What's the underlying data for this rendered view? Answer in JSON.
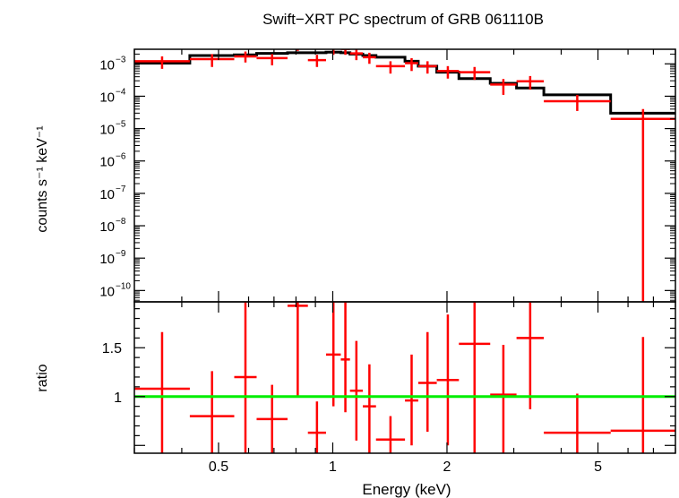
{
  "chart_data": {
    "type": "step+errorbar",
    "title": "Swift−XRT PC spectrum of GRB 061110B",
    "xlabel": "Energy (keV)",
    "x_scale": "log",
    "xlim": [
      0.3,
      8.0
    ],
    "x_ticks": [
      {
        "value": 0.5,
        "label": "0.5"
      },
      {
        "value": 1,
        "label": "1"
      },
      {
        "value": 2,
        "label": "2"
      },
      {
        "value": 5,
        "label": "5"
      }
    ],
    "panels": {
      "spectrum": {
        "ylabel": "counts s⁻¹ keV⁻¹",
        "y_scale": "log",
        "ylim_log10": [
          -10.35,
          -2.55
        ],
        "y_ticks": [
          {
            "exp": -3,
            "label_base": "10",
            "label_exp": "−3"
          },
          {
            "exp": -4,
            "label_base": "10",
            "label_exp": "−4"
          },
          {
            "exp": -5,
            "label_base": "10",
            "label_exp": "−5"
          },
          {
            "exp": -6,
            "label_base": "10",
            "label_exp": "−6"
          },
          {
            "exp": -7,
            "label_base": "10",
            "label_exp": "−7"
          },
          {
            "exp": -8,
            "label_base": "10",
            "label_exp": "−8"
          },
          {
            "exp": -9,
            "label_base": "10",
            "label_exp": "−9"
          },
          {
            "exp": -10,
            "label_base": "10",
            "label_exp": "−10"
          }
        ],
        "data_color": "#ff0000",
        "model_color": "#000000",
        "data": [
          {
            "xlo": 0.3,
            "xhi": 0.42,
            "y": 0.0012,
            "ylo": 0.0007,
            "yhi": 0.0017
          },
          {
            "xlo": 0.42,
            "xhi": 0.55,
            "y": 0.0014,
            "ylo": 0.0008,
            "yhi": 0.002
          },
          {
            "xlo": 0.55,
            "xhi": 0.63,
            "y": 0.0017,
            "ylo": 0.0011,
            "yhi": 0.0024
          },
          {
            "xlo": 0.63,
            "xhi": 0.76,
            "y": 0.0015,
            "ylo": 0.0009,
            "yhi": 0.002
          },
          {
            "xlo": 0.76,
            "xhi": 0.86,
            "y": 0.0035,
            "ylo": 0.0025,
            "yhi": 0.0045
          },
          {
            "xlo": 0.86,
            "xhi": 0.96,
            "y": 0.0013,
            "ylo": 0.0008,
            "yhi": 0.0019
          },
          {
            "xlo": 0.96,
            "xhi": 1.05,
            "y": 0.0031,
            "ylo": 0.0019,
            "yhi": 0.0043
          },
          {
            "xlo": 1.05,
            "xhi": 1.11,
            "y": 0.0029,
            "ylo": 0.0019,
            "yhi": 0.0039
          },
          {
            "xlo": 1.11,
            "xhi": 1.2,
            "y": 0.0021,
            "ylo": 0.0013,
            "yhi": 0.003
          },
          {
            "xlo": 1.2,
            "xhi": 1.3,
            "y": 0.0016,
            "ylo": 0.001,
            "yhi": 0.0022
          },
          {
            "xlo": 1.3,
            "xhi": 1.55,
            "y": 0.00085,
            "ylo": 0.0005,
            "yhi": 0.0012
          },
          {
            "xlo": 1.55,
            "xhi": 1.68,
            "y": 0.00105,
            "ylo": 0.0006,
            "yhi": 0.0015
          },
          {
            "xlo": 1.68,
            "xhi": 1.88,
            "y": 0.00085,
            "ylo": 0.0005,
            "yhi": 0.0012
          },
          {
            "xlo": 1.88,
            "xhi": 2.15,
            "y": 0.0006,
            "ylo": 0.00035,
            "yhi": 0.00085
          },
          {
            "xlo": 2.15,
            "xhi": 2.6,
            "y": 0.00055,
            "ylo": 0.00032,
            "yhi": 0.0008
          },
          {
            "xlo": 2.6,
            "xhi": 3.05,
            "y": 0.00023,
            "ylo": 0.00011,
            "yhi": 0.00034
          },
          {
            "xlo": 3.05,
            "xhi": 3.6,
            "y": 0.00029,
            "ylo": 0.00016,
            "yhi": 0.00042
          },
          {
            "xlo": 3.6,
            "xhi": 5.4,
            "y": 7e-05,
            "ylo": 3.5e-05,
            "yhi": 0.00011
          },
          {
            "xlo": 5.4,
            "xhi": 8.0,
            "y": 2e-05,
            "ylo": 1e-11,
            "yhi": 4e-05
          }
        ],
        "model": [
          {
            "xlo": 0.3,
            "xhi": 0.42,
            "y": 0.00105
          },
          {
            "xlo": 0.42,
            "xhi": 0.55,
            "y": 0.0018
          },
          {
            "xlo": 0.55,
            "xhi": 0.63,
            "y": 0.0019
          },
          {
            "xlo": 0.63,
            "xhi": 0.76,
            "y": 0.0021
          },
          {
            "xlo": 0.76,
            "xhi": 0.86,
            "y": 0.0022
          },
          {
            "xlo": 0.86,
            "xhi": 0.96,
            "y": 0.0022
          },
          {
            "xlo": 0.96,
            "xhi": 1.05,
            "y": 0.0023
          },
          {
            "xlo": 1.05,
            "xhi": 1.11,
            "y": 0.0022
          },
          {
            "xlo": 1.11,
            "xhi": 1.2,
            "y": 0.002
          },
          {
            "xlo": 1.2,
            "xhi": 1.3,
            "y": 0.0018
          },
          {
            "xlo": 1.3,
            "xhi": 1.55,
            "y": 0.0016
          },
          {
            "xlo": 1.55,
            "xhi": 1.68,
            "y": 0.0012
          },
          {
            "xlo": 1.68,
            "xhi": 1.88,
            "y": 0.00085
          },
          {
            "xlo": 1.88,
            "xhi": 2.15,
            "y": 0.00055
          },
          {
            "xlo": 2.15,
            "xhi": 2.6,
            "y": 0.00035
          },
          {
            "xlo": 2.6,
            "xhi": 3.05,
            "y": 0.00025
          },
          {
            "xlo": 3.05,
            "xhi": 3.6,
            "y": 0.00018
          },
          {
            "xlo": 3.6,
            "xhi": 5.4,
            "y": 0.00011
          },
          {
            "xlo": 5.4,
            "xhi": 8.0,
            "y": 3e-05
          }
        ]
      },
      "ratio": {
        "ylabel": "ratio",
        "y_scale": "linear",
        "ylim": [
          0.42,
          1.97
        ],
        "y_ticks": [
          {
            "value": 1,
            "label": "1"
          },
          {
            "value": 1.5,
            "label": "1.5"
          }
        ],
        "reference_line": {
          "y": 1,
          "color": "#00ee00"
        },
        "data_color": "#ff0000",
        "data": [
          {
            "xlo": 0.3,
            "xhi": 0.42,
            "y": 1.08,
            "ylo": 0.42,
            "yhi": 1.66
          },
          {
            "xlo": 0.42,
            "xhi": 0.55,
            "y": 0.8,
            "ylo": 0.42,
            "yhi": 1.26
          },
          {
            "xlo": 0.55,
            "xhi": 0.63,
            "y": 1.2,
            "ylo": 0.42,
            "yhi": 1.97
          },
          {
            "xlo": 0.63,
            "xhi": 0.76,
            "y": 0.77,
            "ylo": 0.42,
            "yhi": 1.12
          },
          {
            "xlo": 0.76,
            "xhi": 0.86,
            "y": 1.93,
            "ylo": 1.0,
            "yhi": 1.97
          },
          {
            "xlo": 0.86,
            "xhi": 0.96,
            "y": 0.63,
            "ylo": 0.42,
            "yhi": 0.95
          },
          {
            "xlo": 0.96,
            "xhi": 1.05,
            "y": 1.43,
            "ylo": 0.9,
            "yhi": 1.97
          },
          {
            "xlo": 1.05,
            "xhi": 1.11,
            "y": 1.38,
            "ylo": 0.84,
            "yhi": 1.97
          },
          {
            "xlo": 1.11,
            "xhi": 1.2,
            "y": 1.06,
            "ylo": 0.55,
            "yhi": 1.57
          },
          {
            "xlo": 1.2,
            "xhi": 1.3,
            "y": 0.9,
            "ylo": 0.42,
            "yhi": 1.33
          },
          {
            "xlo": 1.3,
            "xhi": 1.55,
            "y": 0.56,
            "ylo": 0.42,
            "yhi": 0.8
          },
          {
            "xlo": 1.55,
            "xhi": 1.68,
            "y": 0.96,
            "ylo": 0.5,
            "yhi": 1.43
          },
          {
            "xlo": 1.68,
            "xhi": 1.88,
            "y": 1.14,
            "ylo": 0.64,
            "yhi": 1.66
          },
          {
            "xlo": 1.88,
            "xhi": 2.15,
            "y": 1.17,
            "ylo": 0.5,
            "yhi": 1.84
          },
          {
            "xlo": 2.15,
            "xhi": 2.6,
            "y": 1.54,
            "ylo": 0.42,
            "yhi": 1.97
          },
          {
            "xlo": 2.6,
            "xhi": 3.05,
            "y": 1.02,
            "ylo": 0.42,
            "yhi": 1.53
          },
          {
            "xlo": 3.05,
            "xhi": 3.6,
            "y": 1.6,
            "ylo": 0.87,
            "yhi": 1.97
          },
          {
            "xlo": 3.6,
            "xhi": 5.4,
            "y": 0.63,
            "ylo": 0.42,
            "yhi": 1.03
          },
          {
            "xlo": 5.4,
            "xhi": 8.0,
            "y": 0.65,
            "ylo": 0.42,
            "yhi": 1.61
          }
        ]
      }
    }
  }
}
